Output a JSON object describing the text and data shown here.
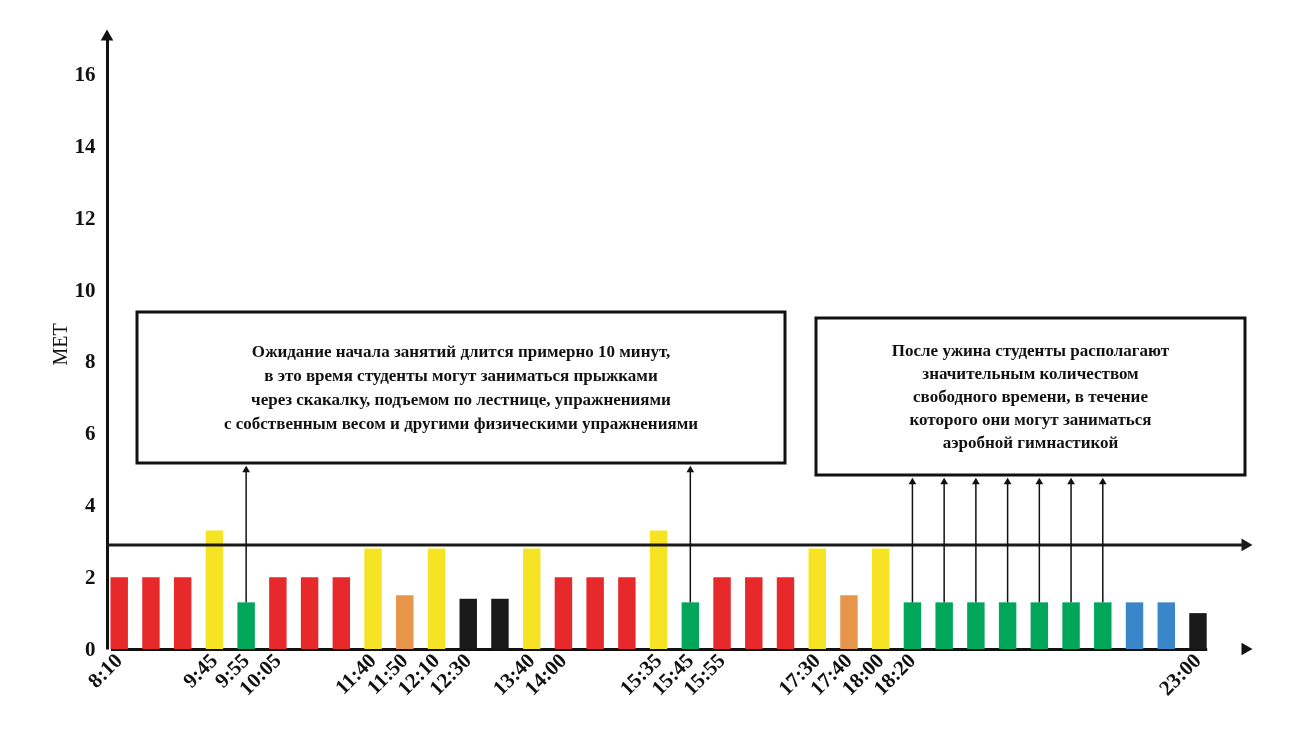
{
  "chart_data": {
    "type": "bar",
    "ylabel": "MET",
    "categories": [
      "8:10",
      null,
      null,
      "9:45",
      "9:55",
      "10:05",
      null,
      null,
      "11:40",
      "11:50",
      "12:10",
      "12:30",
      null,
      "13:40",
      "14:00",
      null,
      null,
      "15:35",
      "15:45",
      "15:55",
      null,
      null,
      "17:30",
      "17:40",
      "18:00",
      "18:20",
      null,
      null,
      null,
      null,
      null,
      null,
      null,
      null,
      "23:00"
    ],
    "values": [
      2,
      2,
      2,
      3.3,
      1.3,
      2,
      2,
      2,
      2.8,
      1.5,
      2.8,
      1.4,
      1.4,
      2.8,
      2,
      2,
      2,
      3.3,
      1.3,
      2,
      2,
      2,
      2.8,
      1.5,
      2.8,
      1.3,
      1.3,
      1.3,
      1.3,
      1.3,
      1.3,
      1.3,
      1.3,
      1.3,
      1.0
    ],
    "colors": [
      "#e8292b",
      "#e8292b",
      "#e8292b",
      "#f6e424",
      "#00a65a",
      "#e8292b",
      "#e8292b",
      "#e8292b",
      "#f6e424",
      "#e8954c",
      "#f6e424",
      "#1a1a1a",
      "#1a1a1a",
      "#f6e424",
      "#e8292b",
      "#e8292b",
      "#e8292b",
      "#f6e424",
      "#00a65a",
      "#e8292b",
      "#e8292b",
      "#e8292b",
      "#f6e424",
      "#e8954c",
      "#f6e424",
      "#00a65a",
      "#00a65a",
      "#00a65a",
      "#00a65a",
      "#00a65a",
      "#00a65a",
      "#00a65a",
      "#3a86c8",
      "#3a86c8",
      "#1a1a1a"
    ],
    "ylim": [
      0,
      17
    ],
    "yticks": [
      0,
      2,
      4,
      6,
      8,
      10,
      12,
      14,
      16
    ],
    "grid": false,
    "ref_lines": [
      {
        "axis": "y",
        "value": 2.9,
        "label": null,
        "color": "#1a1a1a"
      }
    ],
    "annotations": [
      "Ожидание начала занятий длится примерно 10 минут,\nв это время студенты могут заниматься прыжками\nчерез скакалку, подъемом по лестнице, упражнениями\nс собственным весом и другими физическими упражнениями",
      "После ужина студенты располагают\nзначительным количеством\nсвободного времени, в течение\nкоторого они могут заниматься\nаэробной гимнастикой"
    ]
  }
}
